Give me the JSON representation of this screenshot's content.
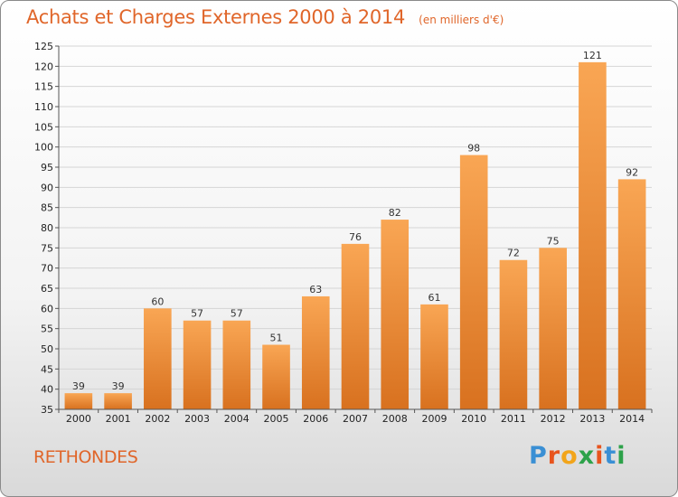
{
  "header": {
    "title": "Achats et Charges Externes 2000 à 2014",
    "subtitle": "(en milliers d'€)"
  },
  "footer": {
    "town": "RETHONDES",
    "logo_text": "Proxiti",
    "logo_letters": [
      {
        "ch": "P",
        "color": "#3a8fd4"
      },
      {
        "ch": "r",
        "color": "#e8541e"
      },
      {
        "ch": "o",
        "color": "#f2a51a"
      },
      {
        "ch": "x",
        "color": "#2da24a"
      },
      {
        "ch": "i",
        "color": "#e8541e"
      },
      {
        "ch": "t",
        "color": "#3a8fd4"
      },
      {
        "ch": "i",
        "color": "#2da24a"
      }
    ]
  },
  "colors": {
    "bar_top": "#f9a654",
    "bar_bottom": "#d8711f",
    "grid": "#d5d5d5",
    "title": "#e0662a"
  },
  "chart_data": {
    "type": "bar",
    "title": "Achats et Charges Externes 2000 à 2014",
    "subtitle": "(en milliers d'€)",
    "categories": [
      "2000",
      "2001",
      "2002",
      "2003",
      "2004",
      "2005",
      "2006",
      "2007",
      "2008",
      "2009",
      "2010",
      "2011",
      "2012",
      "2013",
      "2014"
    ],
    "values": [
      39,
      39,
      60,
      57,
      57,
      51,
      63,
      76,
      82,
      61,
      98,
      72,
      75,
      121,
      92
    ],
    "xlabel": "",
    "ylabel": "",
    "ylim": [
      35,
      125
    ],
    "yticks": [
      35,
      40,
      45,
      50,
      55,
      60,
      65,
      70,
      75,
      80,
      85,
      90,
      95,
      100,
      105,
      110,
      115,
      120,
      125
    ],
    "grid": true,
    "data_labels": true
  }
}
